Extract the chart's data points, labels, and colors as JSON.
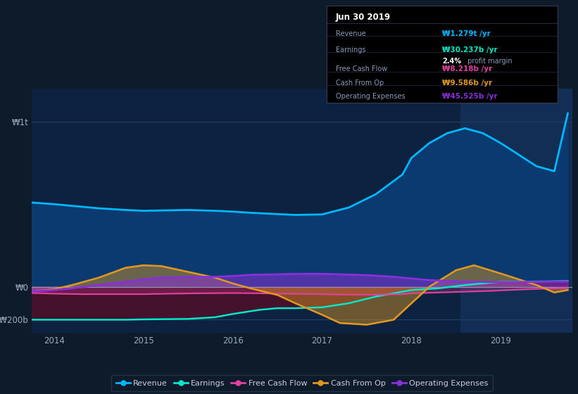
{
  "bg_color": "#0d1b2a",
  "plot_bg_color": "#0d2240",
  "grid_color": "#2a4a6a",
  "revenue_color": "#00b8ff",
  "earnings_color": "#00e8c8",
  "fcf_color": "#e040a0",
  "cashfromop_color": "#e09820",
  "opex_color": "#8830d8",
  "revenue_fill_color": "#0a3a70",
  "earnings_fill_color": "#501028",
  "revenue": {
    "x": [
      2013.75,
      2014.0,
      2014.2,
      2014.5,
      2014.8,
      2015.0,
      2015.2,
      2015.5,
      2015.8,
      2016.0,
      2016.2,
      2016.5,
      2016.7,
      2017.0,
      2017.3,
      2017.6,
      2017.9,
      2018.0,
      2018.2,
      2018.4,
      2018.6,
      2018.8,
      2019.0,
      2019.2,
      2019.4,
      2019.6,
      2019.75
    ],
    "y": [
      510,
      500,
      490,
      475,
      465,
      460,
      462,
      465,
      460,
      455,
      448,
      440,
      435,
      438,
      480,
      560,
      680,
      780,
      870,
      930,
      960,
      930,
      870,
      800,
      730,
      700,
      1050
    ]
  },
  "earnings": {
    "x": [
      2013.75,
      2014.0,
      2014.2,
      2014.5,
      2014.8,
      2015.0,
      2015.5,
      2015.8,
      2016.0,
      2016.3,
      2016.5,
      2016.7,
      2017.0,
      2017.3,
      2017.6,
      2017.9,
      2018.0,
      2018.3,
      2018.6,
      2018.9,
      2019.0,
      2019.2,
      2019.5,
      2019.75
    ],
    "y": [
      -200,
      -200,
      -200,
      -200,
      -200,
      -198,
      -195,
      -185,
      -165,
      -140,
      -130,
      -130,
      -125,
      -100,
      -60,
      -30,
      -20,
      -10,
      10,
      25,
      30,
      30,
      32,
      35
    ]
  },
  "fcf": {
    "x": [
      2013.75,
      2014.0,
      2014.3,
      2014.6,
      2015.0,
      2015.3,
      2015.6,
      2016.0,
      2016.3,
      2016.6,
      2017.0,
      2017.3,
      2017.6,
      2017.9,
      2018.0,
      2018.3,
      2018.6,
      2018.9,
      2019.0,
      2019.3,
      2019.6,
      2019.75
    ],
    "y": [
      -38,
      -42,
      -45,
      -45,
      -45,
      -42,
      -40,
      -38,
      -40,
      -42,
      -45,
      -48,
      -48,
      -45,
      -40,
      -35,
      -30,
      -25,
      -22,
      -15,
      -10,
      -8
    ]
  },
  "cashfromop": {
    "x": [
      2013.75,
      2014.0,
      2014.2,
      2014.5,
      2014.8,
      2015.0,
      2015.2,
      2015.5,
      2015.8,
      2016.0,
      2016.2,
      2016.5,
      2016.7,
      2017.0,
      2017.2,
      2017.5,
      2017.8,
      2018.0,
      2018.2,
      2018.5,
      2018.7,
      2019.0,
      2019.2,
      2019.4,
      2019.6,
      2019.75
    ],
    "y": [
      -30,
      -15,
      10,
      55,
      115,
      130,
      125,
      90,
      55,
      20,
      -10,
      -50,
      -100,
      -170,
      -220,
      -230,
      -200,
      -100,
      0,
      100,
      130,
      80,
      45,
      10,
      -35,
      -20
    ]
  },
  "opex": {
    "x": [
      2013.75,
      2014.0,
      2014.2,
      2014.5,
      2014.8,
      2015.0,
      2015.2,
      2015.5,
      2015.8,
      2016.0,
      2016.2,
      2016.5,
      2016.7,
      2017.0,
      2017.2,
      2017.5,
      2017.8,
      2018.0,
      2018.2,
      2018.5,
      2018.7,
      2019.0,
      2019.2,
      2019.5,
      2019.75
    ],
    "y": [
      -30,
      -20,
      -10,
      10,
      30,
      45,
      55,
      58,
      60,
      65,
      72,
      75,
      78,
      78,
      75,
      70,
      60,
      50,
      40,
      32,
      30,
      28,
      28,
      30,
      32
    ]
  },
  "highlight_x_start": 2018.55,
  "highlight_x_end": 2019.8,
  "highlight_color": "#1a3a6a",
  "x_lim": [
    2013.75,
    2019.8
  ],
  "y_lim": [
    -280,
    1200
  ],
  "x_ticks": [
    2014,
    2015,
    2016,
    2017,
    2018,
    2019
  ],
  "y_ticks": [
    -200,
    0,
    1000
  ],
  "y_tick_labels": [
    "-₩200b",
    "₩0",
    "₩1t"
  ],
  "legend_items": [
    {
      "label": "Revenue",
      "color": "#00b8ff"
    },
    {
      "label": "Earnings",
      "color": "#00e8c8"
    },
    {
      "label": "Free Cash Flow",
      "color": "#e040a0"
    },
    {
      "label": "Cash From Op",
      "color": "#e09820"
    },
    {
      "label": "Operating Expenses",
      "color": "#8830d8"
    }
  ],
  "tooltip": {
    "title": "Jun 30 2019",
    "rows": [
      {
        "label": "Revenue",
        "value": "₩1.279t /yr",
        "color": "#00b8ff"
      },
      {
        "label": "Earnings",
        "value": "₩30.237b /yr",
        "color": "#00e8c8",
        "sub": "2.4% profit margin"
      },
      {
        "label": "Free Cash Flow",
        "value": "₩8.218b /yr",
        "color": "#e040a0"
      },
      {
        "label": "Cash From Op",
        "value": "₩9.586b /yr",
        "color": "#e09820"
      },
      {
        "label": "Operating Expenses",
        "value": "₩45.525b /yr",
        "color": "#8830d8"
      }
    ]
  }
}
